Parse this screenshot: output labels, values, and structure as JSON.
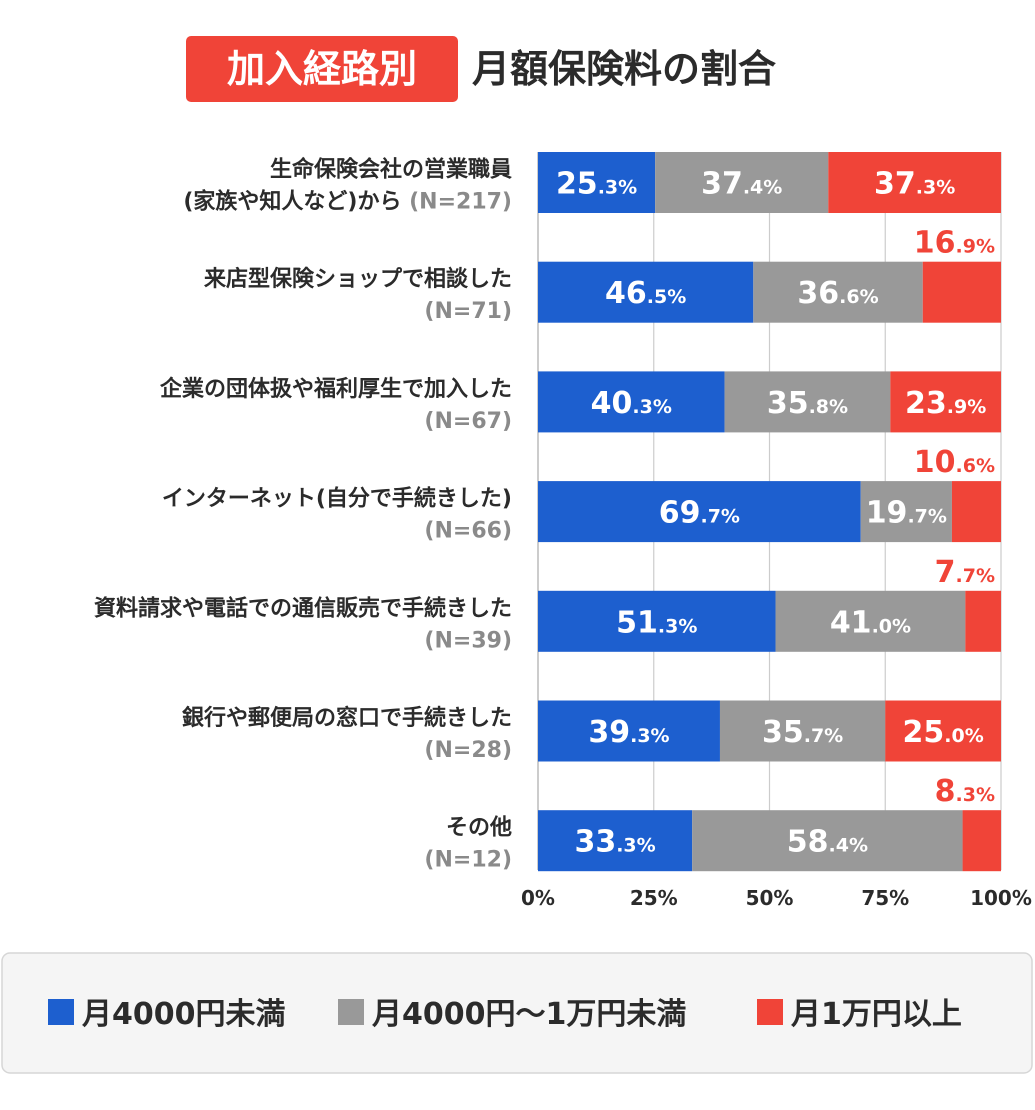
{
  "title": {
    "badge": "加入経路別",
    "main": "月額保険料の割合"
  },
  "colors": {
    "blue": "#1d5fcf",
    "gray": "#999999",
    "red": "#f04438",
    "badge": "#f04438",
    "grid": "#cccccc"
  },
  "chart_data": {
    "type": "bar",
    "orientation": "horizontal",
    "stacked": true,
    "xlim": [
      0,
      100
    ],
    "x_ticks": [
      "0%",
      "25%",
      "50%",
      "75%",
      "100%"
    ],
    "categories": [
      {
        "name": [
          "生命保険会社の営業職員",
          "(家族や知人など)から"
        ],
        "n": "(N=217)"
      },
      {
        "name": [
          "来店型保険ショップで相談した"
        ],
        "n": "(N=71)"
      },
      {
        "name": [
          "企業の団体扱や福利厚生で加入した"
        ],
        "n": "(N=67)"
      },
      {
        "name": [
          "インターネット(自分で手続きした)"
        ],
        "n": "(N=66)"
      },
      {
        "name": [
          "資料請求や電話での通信販売で手続きした"
        ],
        "n": "(N=39)"
      },
      {
        "name": [
          "銀行や郵便局の窓口で手続きした"
        ],
        "n": "(N=28)"
      },
      {
        "name": [
          "その他"
        ],
        "n": "(N=12)"
      }
    ],
    "series": [
      {
        "name": "月4000円未満",
        "color": "#1d5fcf",
        "values": [
          25.3,
          46.5,
          40.3,
          69.7,
          51.3,
          39.3,
          33.3
        ],
        "labels": [
          [
            "25",
            ".3%"
          ],
          [
            "46",
            ".5%"
          ],
          [
            "40",
            ".3%"
          ],
          [
            "69",
            ".7%"
          ],
          [
            "51",
            ".3%"
          ],
          [
            "39",
            ".3%"
          ],
          [
            "33",
            ".3%"
          ]
        ]
      },
      {
        "name": "月4000円～1万円未満",
        "color": "#999999",
        "values": [
          37.4,
          36.6,
          35.8,
          19.7,
          41.0,
          35.7,
          58.4
        ],
        "labels": [
          [
            "37",
            ".4%"
          ],
          [
            "36",
            ".6%"
          ],
          [
            "35",
            ".8%"
          ],
          [
            "19",
            ".7%"
          ],
          [
            "41",
            ".0%"
          ],
          [
            "35",
            ".7%"
          ],
          [
            "58",
            ".4%"
          ]
        ]
      },
      {
        "name": "月1万円以上",
        "color": "#f04438",
        "values": [
          37.3,
          16.9,
          23.9,
          10.6,
          7.7,
          25.0,
          8.3
        ],
        "labels": [
          [
            "37",
            ".3%"
          ],
          [
            "16",
            ".9%"
          ],
          [
            "23",
            ".9%"
          ],
          [
            "10",
            ".6%"
          ],
          [
            "7",
            ".7%"
          ],
          [
            "25",
            ".0%"
          ],
          [
            "8",
            ".3%"
          ]
        ]
      }
    ],
    "legend": {
      "placement": "bottom",
      "items": [
        "月4000円未満",
        "月4000円～1万円未満",
        "月1万円以上"
      ]
    }
  }
}
